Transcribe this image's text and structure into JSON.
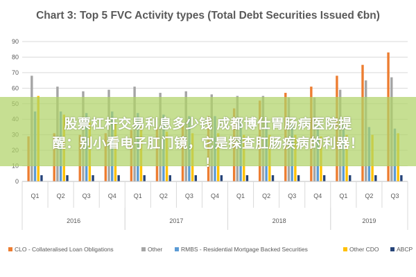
{
  "chart_data": {
    "type": "bar",
    "title": "Chart 3: Top 5 FVC Activity types (Total Debt Securities Issued €bn)",
    "ylim": [
      0,
      90
    ],
    "yticks": [
      0,
      10,
      20,
      30,
      40,
      50,
      60,
      70,
      80,
      90
    ],
    "categories": [
      "Q1",
      "Q2",
      "Q3",
      "Q4",
      "Q1",
      "Q2",
      "Q3",
      "Q4",
      "Q1",
      "Q2",
      "Q3",
      "Q4",
      "Q1",
      "Q2",
      "Q3"
    ],
    "groups": [
      {
        "label": "2016",
        "span": 4
      },
      {
        "label": "2017",
        "span": 4
      },
      {
        "label": "2018",
        "span": 4
      },
      {
        "label": "2019",
        "span": 3
      }
    ],
    "legend_position": "bottom",
    "series": [
      {
        "name": "CLO - Collateralised Loan Obligations",
        "color": "#ED7D31",
        "values": [
          29,
          31,
          30,
          31,
          33,
          35,
          38,
          42,
          47,
          52,
          57,
          61,
          68,
          75,
          83
        ]
      },
      {
        "name": "Other",
        "color": "#A5A5A5",
        "values": [
          68,
          61,
          58,
          59,
          61,
          57,
          58,
          56,
          55,
          55,
          54,
          54,
          59,
          65,
          67
        ]
      },
      {
        "name": "RMBS - Residential Mortgage Backed Securities",
        "color": "#5B9BD5",
        "values": [
          45,
          45,
          44,
          45,
          44,
          43,
          42,
          42,
          40,
          38,
          37,
          36,
          36,
          35,
          34
        ]
      },
      {
        "name": "Other CDO",
        "color": "#FFC000",
        "values": [
          55,
          43,
          38,
          37,
          35,
          32,
          31,
          31,
          30,
          30,
          30,
          29,
          30,
          30,
          31
        ]
      },
      {
        "name": "ABCP",
        "color": "#264478",
        "values": [
          4,
          4,
          4,
          4,
          4,
          4,
          4,
          4,
          4,
          4,
          4,
          4,
          4,
          4,
          4
        ]
      }
    ]
  },
  "overlay": {
    "line1": "股票杠杆交易利息多少钱 成都博仕胃肠病医院提",
    "line2": "醒：别小看电子肛门镜，它是探查肛肠疾病的利器！",
    "line3": "!"
  }
}
